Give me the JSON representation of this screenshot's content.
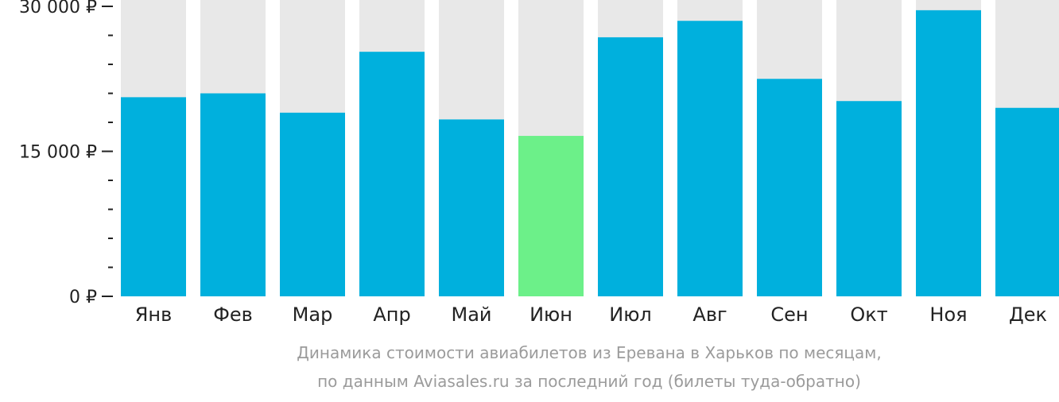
{
  "chart_data": {
    "type": "bar",
    "categories": [
      "Янв",
      "Фев",
      "Мар",
      "Апр",
      "Май",
      "Июн",
      "Июл",
      "Авг",
      "Сен",
      "Окт",
      "Ноя",
      "Дек"
    ],
    "values": [
      20600,
      21000,
      19000,
      25300,
      18300,
      16600,
      26800,
      28500,
      22500,
      20200,
      29600,
      19500
    ],
    "ylim": [
      0,
      30000
    ],
    "yticks": [
      {
        "value": 0,
        "label": "0 ₽"
      },
      {
        "value": 15000,
        "label": "15 000 ₽"
      },
      {
        "value": 30000,
        "label": "30 000 ₽"
      }
    ],
    "minor_tick_step": 3000,
    "highlight_category": "Июн",
    "colors": {
      "bar": "#00b0dd",
      "highlight": "#6cf089",
      "background_column": "#e8e8e8",
      "axis": "#222222",
      "caption": "#9b9b9b"
    },
    "grid": false,
    "legend": "none"
  },
  "caption": {
    "line1": "Динамика стоимости авиабилетов из Еревана в Харьков по месяцам,",
    "line2": "по данным Aviasales.ru за последний год (билеты туда-обратно)"
  }
}
